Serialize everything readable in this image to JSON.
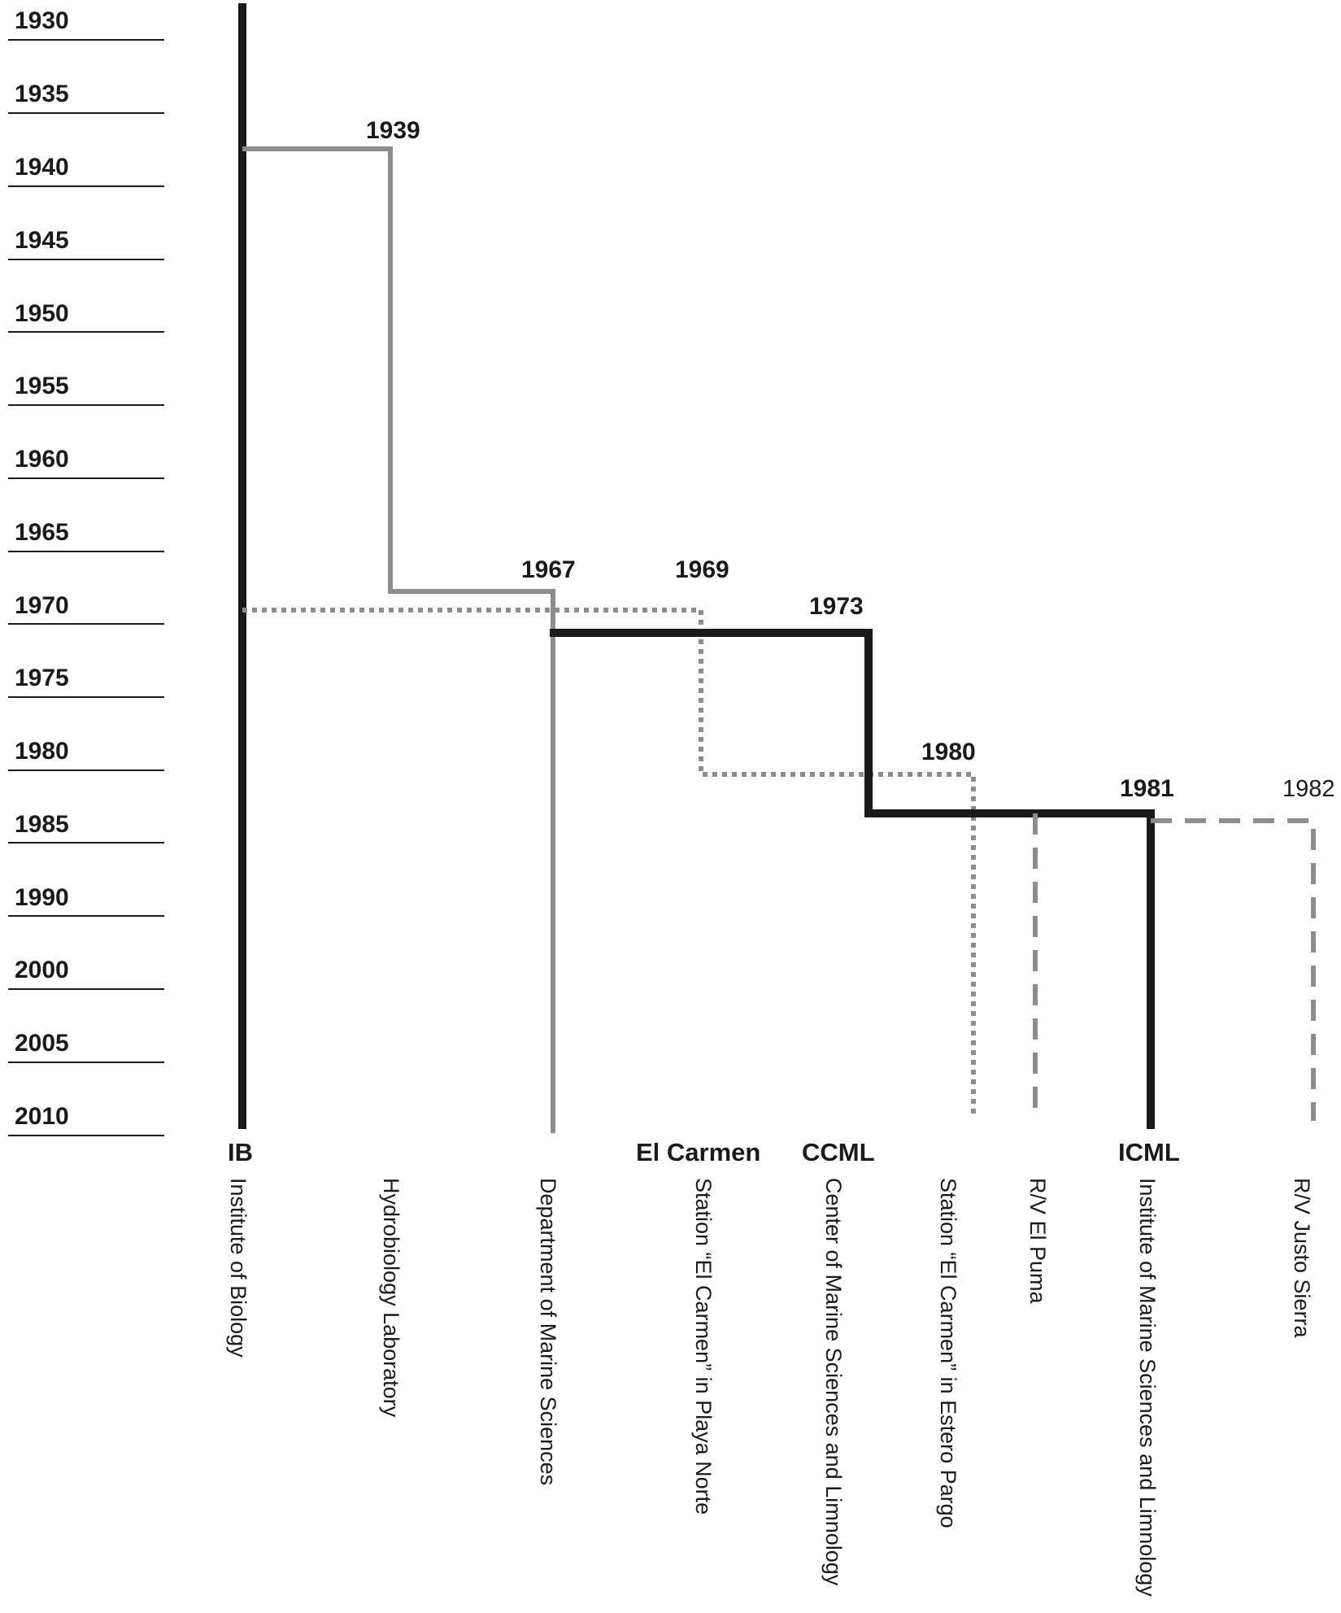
{
  "year_axis": [
    "1930",
    "1935",
    "1940",
    "1945",
    "1950",
    "1955",
    "1960",
    "1965",
    "1970",
    "1975",
    "1980",
    "1985",
    "1990",
    "2000",
    "2005",
    "2010"
  ],
  "event_years": [
    {
      "id": "y1939",
      "text": "1939"
    },
    {
      "id": "y1967",
      "text": "1967"
    },
    {
      "id": "y1969",
      "text": "1969"
    },
    {
      "id": "y1973",
      "text": "1973"
    },
    {
      "id": "y1980",
      "text": "1980"
    },
    {
      "id": "y1981",
      "text": "1981"
    },
    {
      "id": "y1982",
      "text": "1982"
    }
  ],
  "abbreviations": [
    {
      "id": "ib",
      "text": "IB"
    },
    {
      "id": "el-carmen",
      "text": "El Carmen"
    },
    {
      "id": "ccml",
      "text": "CCML"
    },
    {
      "id": "icml",
      "text": "ICML"
    }
  ],
  "institutions": [
    {
      "id": "institute-of-biology",
      "name": "Institute of Biology"
    },
    {
      "id": "hydrobiology-laboratory",
      "name": "Hydrobiology Laboratory"
    },
    {
      "id": "department-of-marine-sciences",
      "name": "Department of Marine Sciences"
    },
    {
      "id": "station-playa-norte",
      "name": "Station “El Carmen” in Playa Norte"
    },
    {
      "id": "center-marine-sciences",
      "name": "Center of Marine Sciences and Limnology"
    },
    {
      "id": "station-estero-pargo",
      "name": "Station “El Carmen” in Estero Pargo"
    },
    {
      "id": "rv-el-puma",
      "name": "R/V El Puma"
    },
    {
      "id": "institute-marine-sciences",
      "name": "Institute of Marine Sciences and Limnology"
    },
    {
      "id": "rv-justo-sierra",
      "name": "R/V Justo Sierra"
    }
  ],
  "line_styles": {
    "black": "#1a1a1a",
    "gray": "#8c8c8c",
    "axis": "#1a1a1a"
  }
}
